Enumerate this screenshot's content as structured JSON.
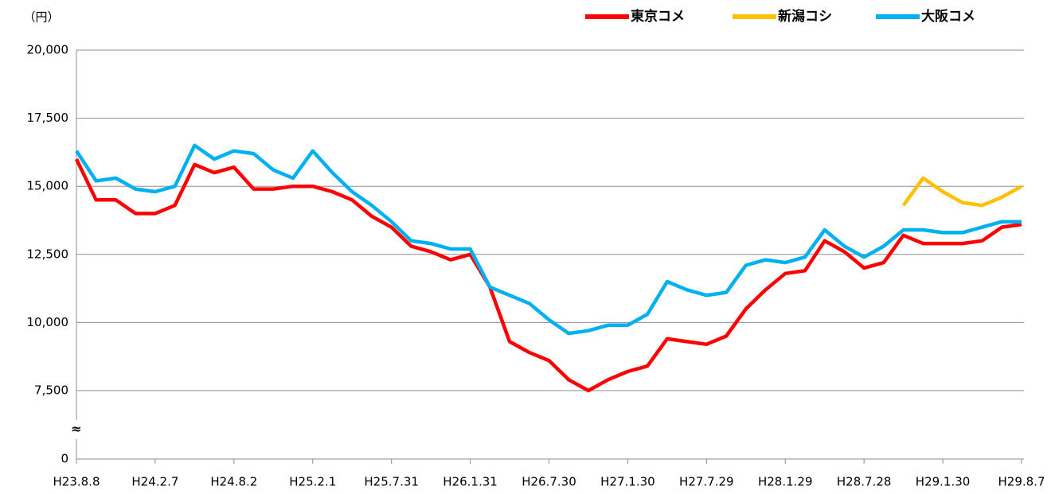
{
  "chart_data": {
    "type": "line",
    "y_label": "（円）",
    "y_break": "≈",
    "categories": [
      "H23.8.8",
      null,
      null,
      null,
      "H24.2.7",
      null,
      null,
      null,
      "H24.8.2",
      null,
      null,
      null,
      "H25.2.1",
      null,
      null,
      null,
      "H25.7.31",
      null,
      null,
      null,
      "H26.1.31",
      null,
      null,
      null,
      "H26.7.30",
      null,
      null,
      null,
      "H27.1.30",
      null,
      null,
      null,
      "H27.7.29",
      null,
      null,
      null,
      "H28.1.29",
      null,
      null,
      null,
      "H28.7.28",
      null,
      null,
      null,
      "H29.1.30",
      null,
      null,
      null,
      "H29.8.7"
    ],
    "series": [
      {
        "name": "東京コメ",
        "color": "#ff0000",
        "values": [
          16000,
          14500,
          14500,
          14000,
          14000,
          14300,
          15800,
          15500,
          15700,
          14900,
          14900,
          15000,
          15000,
          14800,
          14500,
          13900,
          13500,
          12800,
          12600,
          12300,
          12500,
          11300,
          9300,
          8900,
          8600,
          7900,
          7500,
          7900,
          8200,
          8400,
          9400,
          9300,
          9200,
          9500,
          10500,
          11200,
          11800,
          11900,
          13000,
          12600,
          12000,
          12200,
          13200,
          12900,
          12900,
          12900,
          13000,
          13500,
          13600
        ]
      },
      {
        "name": "新潟コシ",
        "color": "#ffc000",
        "values": [
          null,
          null,
          null,
          null,
          null,
          null,
          null,
          null,
          null,
          null,
          null,
          null,
          null,
          null,
          null,
          null,
          null,
          null,
          null,
          null,
          null,
          null,
          null,
          null,
          null,
          null,
          null,
          null,
          null,
          null,
          null,
          null,
          null,
          null,
          null,
          null,
          null,
          null,
          null,
          null,
          null,
          null,
          14300,
          15300,
          14800,
          14400,
          14300,
          14600,
          15000
        ]
      },
      {
        "name": "大阪コメ",
        "color": "#00b0f0",
        "values": [
          16300,
          15200,
          15300,
          14900,
          14800,
          15000,
          16500,
          16000,
          16300,
          16200,
          15600,
          15300,
          16300,
          15500,
          14800,
          14300,
          13700,
          13000,
          12900,
          12700,
          12700,
          11300,
          11000,
          10700,
          10100,
          9600,
          9700,
          9900,
          9900,
          10300,
          11500,
          11200,
          11000,
          11100,
          12100,
          12300,
          12200,
          12400,
          13400,
          12800,
          12400,
          12800,
          13400,
          13400,
          13300,
          13300,
          13500,
          13700,
          13700
        ]
      }
    ],
    "ylim": [
      0,
      20000
    ],
    "yticks": [
      0,
      {
        "value": 7500,
        "label": "7,500"
      },
      {
        "value": 10000,
        "label": "10,000"
      },
      {
        "value": 12500,
        "label": "12,500"
      },
      {
        "value": 15000,
        "label": "15,000"
      },
      {
        "value": 17500,
        "label": "17,500"
      },
      {
        "value": 20000,
        "label": "20,000"
      }
    ],
    "grid": true,
    "legend": "top-right"
  }
}
